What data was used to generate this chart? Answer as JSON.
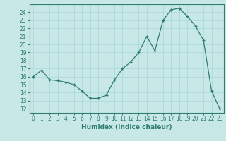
{
  "x": [
    0,
    1,
    2,
    3,
    4,
    5,
    6,
    7,
    8,
    9,
    10,
    11,
    12,
    13,
    14,
    15,
    16,
    17,
    18,
    19,
    20,
    21,
    22,
    23
  ],
  "y": [
    16.0,
    16.8,
    15.6,
    15.5,
    15.3,
    15.0,
    14.2,
    13.3,
    13.3,
    13.7,
    15.6,
    17.0,
    17.8,
    19.0,
    21.0,
    19.2,
    23.0,
    24.3,
    24.5,
    23.5,
    22.3,
    20.5,
    14.2,
    12.0
  ],
  "xlabel": "Humidex (Indice chaleur)",
  "ylabel": "",
  "xlim": [
    -0.5,
    23.5
  ],
  "ylim": [
    11.5,
    25.0
  ],
  "yticks": [
    12,
    13,
    14,
    15,
    16,
    17,
    18,
    19,
    20,
    21,
    22,
    23,
    24
  ],
  "xticks": [
    0,
    1,
    2,
    3,
    4,
    5,
    6,
    7,
    8,
    9,
    10,
    11,
    12,
    13,
    14,
    15,
    16,
    17,
    18,
    19,
    20,
    21,
    22,
    23
  ],
  "line_color": "#2e7d6e",
  "marker": "+",
  "bg_color": "#c8e8e8",
  "grid_color": "#a8d8d8",
  "label_fontsize": 6.5,
  "tick_fontsize": 5.5
}
